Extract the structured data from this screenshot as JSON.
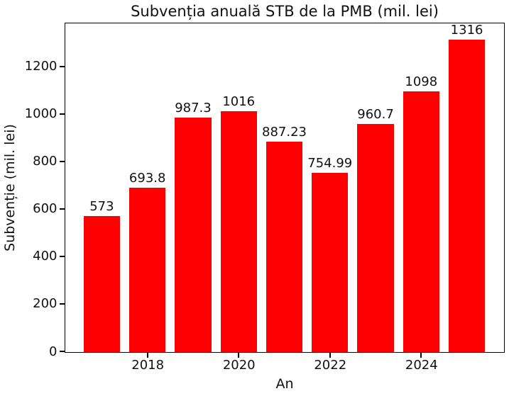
{
  "chart_data": {
    "type": "bar",
    "title": "Subvenția anuală STB de la PMB (mil. lei)",
    "xlabel": "An",
    "ylabel": "Subvenție (mil. lei)",
    "categories": [
      2017,
      2018,
      2019,
      2020,
      2021,
      2022,
      2023,
      2024,
      2025
    ],
    "values": [
      573,
      693.8,
      987.3,
      1016,
      887.23,
      754.99,
      960.7,
      1098,
      1316
    ],
    "bar_labels": [
      "573",
      "693.8",
      "987.3",
      "1016",
      "887.23",
      "754.99",
      "960.7",
      "1098",
      "1316"
    ],
    "xticks": [
      2018,
      2020,
      2022,
      2024
    ],
    "yticks": [
      0,
      200,
      400,
      600,
      800,
      1000,
      1200
    ],
    "xlim": [
      2016.2,
      2025.8
    ],
    "ylim": [
      0,
      1382
    ],
    "bar_width": 0.8,
    "bar_color": "#ff0000",
    "text_color": "#111111",
    "spine_color": "#000000",
    "grid": false,
    "legend": null
  }
}
